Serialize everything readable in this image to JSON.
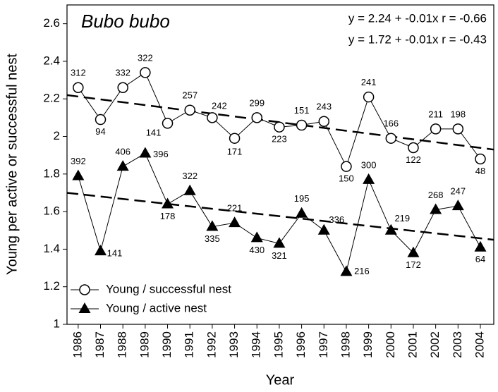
{
  "chart_data": {
    "type": "line",
    "title": "Bubo bubo",
    "annotations": [
      "y = 2.24 + -0.01x  r = -0.66",
      "y = 1.72 + -0.01x  r = -0.43"
    ],
    "x_label": "Year",
    "y_label": "Young per active or successful nest",
    "x": [
      1986,
      1987,
      1988,
      1989,
      1990,
      1991,
      1992,
      1993,
      1994,
      1995,
      1996,
      1997,
      1998,
      1999,
      2000,
      2001,
      2002,
      2003,
      2004
    ],
    "xlim": [
      1985.5,
      2004.6
    ],
    "xticks": [
      1986,
      1987,
      1988,
      1989,
      1990,
      1991,
      1992,
      1993,
      1994,
      1995,
      1996,
      1997,
      1998,
      1999,
      2000,
      2001,
      2002,
      2003,
      2004
    ],
    "ylim": [
      1,
      2.7
    ],
    "yticks": [
      1,
      1.2,
      1.4,
      1.6,
      1.8,
      2,
      2.2,
      2.4,
      2.6
    ],
    "legend": "lower left",
    "series": [
      {
        "name": "Young / successful nest",
        "marker": "circle",
        "color": "#000000",
        "values": [
          2.26,
          2.09,
          2.26,
          2.34,
          2.07,
          2.14,
          2.1,
          1.99,
          2.1,
          2.05,
          2.06,
          2.08,
          1.84,
          2.21,
          1.99,
          1.94,
          2.04,
          2.04,
          1.88
        ],
        "value_labels": [
          "312",
          "94",
          "332",
          "322",
          "141",
          "257",
          "242",
          "171",
          "299",
          "223",
          "151",
          "243",
          "150",
          "241",
          "166",
          "122",
          "211",
          "198",
          "48"
        ]
      },
      {
        "name": "Young / active nest",
        "marker": "triangle",
        "color": "#000000",
        "values": [
          1.79,
          1.39,
          1.84,
          1.91,
          1.64,
          1.71,
          1.52,
          1.54,
          1.46,
          1.43,
          1.59,
          1.5,
          1.28,
          1.77,
          1.5,
          1.38,
          1.61,
          1.63,
          1.41
        ],
        "value_labels": [
          "392",
          "141",
          "406",
          "396",
          "178",
          "322",
          "335",
          "221",
          "430",
          "321",
          "195",
          "336",
          "216",
          "300",
          "219",
          "172",
          "268",
          "247",
          "64"
        ]
      }
    ],
    "trendlines": [
      {
        "x": [
          1985.5,
          2004.6
        ],
        "values": [
          2.22,
          1.93
        ]
      },
      {
        "x": [
          1985.5,
          2004.6
        ],
        "values": [
          1.7,
          1.45
        ]
      }
    ]
  }
}
